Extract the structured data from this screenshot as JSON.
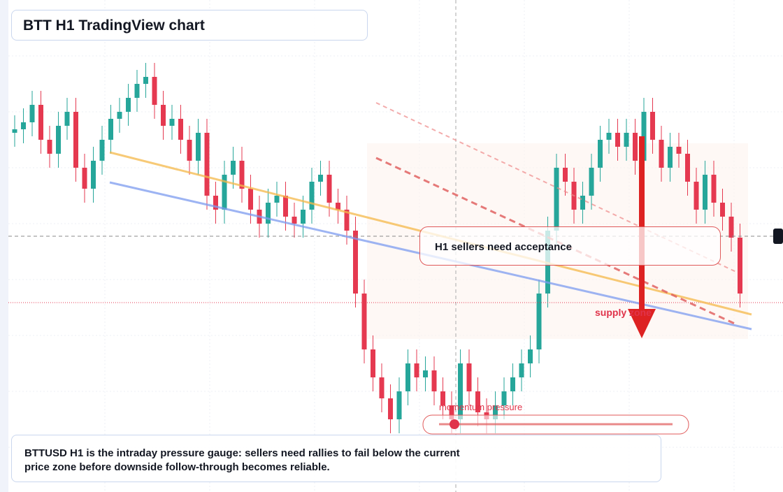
{
  "header": {
    "title": "BTT H1 TradingView chart"
  },
  "chart_data": {
    "type": "candlestick",
    "open": [
      514,
      519,
      529,
      554,
      504,
      484,
      524,
      544,
      464,
      434,
      474,
      504,
      534,
      544,
      564,
      584,
      594,
      554,
      524,
      534,
      504,
      474,
      514,
      424,
      404,
      454,
      474,
      434,
      404,
      384,
      414,
      424,
      394,
      384,
      404,
      444,
      454,
      414,
      404,
      374,
      284,
      204,
      164,
      134,
      104,
      144,
      184,
      164,
      174,
      144,
      124,
      104,
      184,
      144,
      114,
      104,
      124,
      144,
      164,
      184,
      204,
      284,
      374,
      464,
      444,
      404,
      424,
      464,
      504,
      514,
      494,
      514,
      474,
      544,
      504,
      464,
      494,
      484,
      444,
      404,
      454,
      414,
      394,
      364
    ],
    "high": [
      539,
      549,
      574,
      574,
      524,
      544,
      564,
      564,
      484,
      494,
      524,
      554,
      564,
      584,
      604,
      614,
      614,
      574,
      554,
      554,
      524,
      534,
      534,
      444,
      474,
      494,
      494,
      454,
      424,
      434,
      444,
      444,
      414,
      424,
      464,
      474,
      474,
      434,
      424,
      394,
      304,
      224,
      184,
      154,
      164,
      204,
      204,
      194,
      194,
      164,
      144,
      204,
      204,
      164,
      134,
      144,
      164,
      184,
      204,
      224,
      304,
      394,
      484,
      484,
      464,
      444,
      484,
      524,
      534,
      534,
      534,
      534,
      564,
      564,
      524,
      514,
      514,
      504,
      464,
      474,
      474,
      434,
      414,
      384
    ],
    "low": [
      494,
      499,
      509,
      484,
      464,
      464,
      504,
      444,
      414,
      414,
      454,
      484,
      514,
      524,
      544,
      564,
      534,
      504,
      504,
      484,
      454,
      454,
      404,
      384,
      384,
      434,
      414,
      384,
      364,
      364,
      394,
      374,
      364,
      364,
      384,
      424,
      394,
      384,
      354,
      264,
      184,
      144,
      114,
      84,
      84,
      124,
      144,
      144,
      124,
      104,
      84,
      84,
      124,
      94,
      84,
      84,
      104,
      124,
      144,
      164,
      184,
      264,
      354,
      424,
      384,
      384,
      404,
      444,
      484,
      474,
      474,
      454,
      454,
      484,
      444,
      444,
      464,
      424,
      384,
      384,
      394,
      374,
      344,
      264
    ],
    "close": [
      519,
      529,
      554,
      504,
      484,
      524,
      544,
      464,
      434,
      474,
      504,
      534,
      544,
      564,
      584,
      594,
      554,
      524,
      534,
      504,
      474,
      514,
      424,
      404,
      454,
      474,
      434,
      404,
      384,
      414,
      424,
      394,
      384,
      404,
      444,
      454,
      414,
      404,
      374,
      284,
      204,
      164,
      134,
      104,
      144,
      184,
      164,
      174,
      144,
      124,
      104,
      184,
      144,
      114,
      104,
      124,
      144,
      164,
      184,
      204,
      284,
      374,
      464,
      444,
      404,
      424,
      464,
      504,
      514,
      494,
      514,
      474,
      544,
      504,
      464,
      494,
      484,
      444,
      404,
      454,
      414,
      394,
      364,
      284
    ],
    "ylim": [
      0,
      704
    ],
    "up_color": "#26a69a",
    "down_color": "#e53950"
  },
  "annotations": {
    "callout": "H1 sellers need acceptance",
    "zone": "supply zone",
    "gauge": "momentum pressure"
  },
  "caption": "BTTUSD H1 is the intraday pressure gauge: sellers need rallies to fail below the current price zone before downside follow-through becomes reliable."
}
